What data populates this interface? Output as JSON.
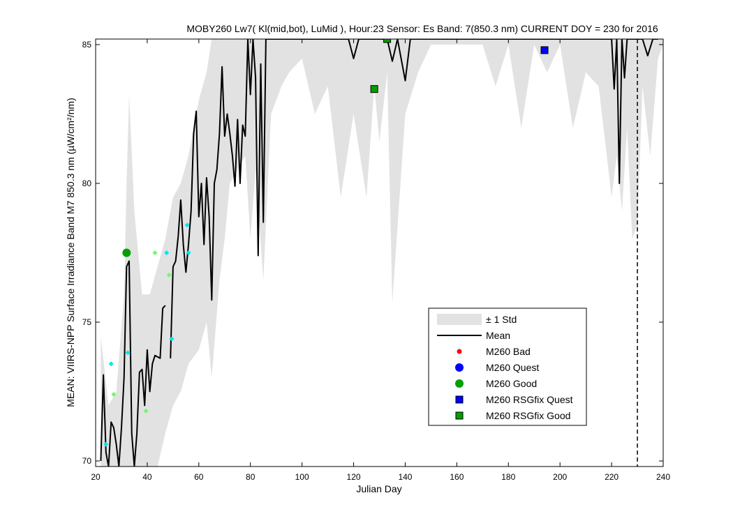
{
  "chart_data": {
    "type": "line",
    "title": "MOBY260   Lw7( Kl(mid,bot), LuMid ),   Hour:23 Sensor: Es Band: 7(850.3 nm)   CURRENT DOY = 230 for 2016",
    "xlabel": "Julian Day",
    "ylabel": "MEAN: VIIRS-NPP Surface Irradiance Band M7 850.3 nm (µW/cm²/nm)",
    "xlim": [
      20,
      240
    ],
    "ylim": [
      69.8,
      85.2
    ],
    "xticks": [
      20,
      40,
      60,
      80,
      100,
      120,
      140,
      160,
      180,
      200,
      220,
      240
    ],
    "yticks": [
      70,
      75,
      80,
      85
    ],
    "grid": false,
    "legend_position": "lower-right",
    "current_doy": 230,
    "colors": {
      "std_band": "#e2e2e2",
      "mean_line": "#000000",
      "bad": "#ff0000",
      "quest": "#0000ff",
      "good": "#00a000",
      "rsgfix_quest": "#0000ff",
      "rsgfix_good": "#00a000",
      "satellite_cyan": "#00e5ee",
      "satellite_green": "#6dfa6d"
    },
    "legend": [
      {
        "label": "± 1 Std",
        "kind": "band"
      },
      {
        "label": "Mean",
        "kind": "line"
      },
      {
        "label": "M260 Bad",
        "kind": "bad"
      },
      {
        "label": "M260 Quest",
        "kind": "quest"
      },
      {
        "label": "M260 Good",
        "kind": "good"
      },
      {
        "label": "M260 RSGfix Quest",
        "kind": "rsgfix_quest"
      },
      {
        "label": "M260 RSGfix Good",
        "kind": "rsgfix_good"
      }
    ],
    "series": [
      {
        "name": "Mean",
        "x": [
          22,
          23,
          24,
          25,
          26,
          27,
          28,
          29,
          30,
          31,
          32,
          33,
          34,
          35,
          36,
          37,
          38,
          39,
          40,
          41,
          42,
          43,
          45,
          46,
          47,
          48,
          49,
          50,
          51,
          52,
          53,
          54,
          55,
          56,
          57,
          58,
          59,
          60,
          61,
          62,
          63,
          64,
          65,
          66,
          67,
          68,
          69,
          70,
          71,
          72,
          73,
          74,
          75,
          76,
          77,
          78,
          79,
          80,
          81,
          82,
          83,
          84,
          85,
          86,
          88,
          90,
          95,
          100,
          105,
          110,
          118,
          120,
          122,
          125,
          128,
          130,
          133,
          135,
          137,
          140,
          142,
          145,
          150,
          160,
          170,
          180,
          190,
          200,
          210,
          220,
          221,
          222,
          223,
          224,
          225,
          226,
          228,
          230,
          232,
          234,
          236,
          238
        ],
        "y": [
          70,
          73.1,
          70.3,
          69.8,
          71.4,
          71.2,
          70.6,
          69.8,
          71.2,
          73,
          77,
          77.2,
          71,
          69.8,
          71,
          73.2,
          73.3,
          72,
          74,
          72.5,
          73.5,
          73.8,
          73.7,
          75.5,
          75.6,
          null,
          73.7,
          77,
          77.2,
          78.1,
          79.4,
          77.8,
          76.8,
          77.8,
          79,
          81.8,
          82.6,
          78.8,
          80,
          77.8,
          80.2,
          78.8,
          75.8,
          80,
          80.5,
          81.8,
          84.2,
          81.7,
          82.5,
          81.8,
          81,
          79.9,
          82.3,
          80,
          82.1,
          81.7,
          85.2,
          83.2,
          85.2,
          83.8,
          77.4,
          84.3,
          78.6,
          85.2,
          85.2,
          85.2,
          85.2,
          85.2,
          85.2,
          85.2,
          85.2,
          84.5,
          85.2,
          85.2,
          85.2,
          85.2,
          85.2,
          84.4,
          85.2,
          83.7,
          85.2,
          85.2,
          85.2,
          85.2,
          85.2,
          85.2,
          85.2,
          85.2,
          85.2,
          85.2,
          83.4,
          85.2,
          80,
          85.2,
          83.8,
          85.2,
          85.2,
          85.2,
          85.2,
          84.6,
          85.2,
          85.2
        ]
      },
      {
        "name": "± 1 Std",
        "x": [
          22,
          25,
          28,
          31,
          32,
          33,
          35,
          38,
          41,
          44,
          47,
          50,
          53,
          56,
          60,
          63,
          65,
          68,
          70,
          72,
          75,
          78,
          80,
          82,
          85,
          88,
          92,
          95,
          100,
          105,
          110,
          115,
          120,
          125,
          128,
          130,
          133,
          135,
          140,
          145,
          150,
          160,
          170,
          175,
          180,
          185,
          190,
          195,
          200,
          205,
          210,
          215,
          220,
          222,
          224,
          226,
          228,
          230,
          232,
          235,
          238,
          240
        ],
        "upper": [
          74.5,
          72,
          72.5,
          76,
          80,
          83.2,
          79,
          76,
          76,
          77,
          78,
          79.5,
          80,
          81,
          83,
          84,
          85.2,
          85.2,
          85.2,
          85.2,
          85.2,
          85.2,
          85.2,
          85.2,
          85.2,
          85.2,
          85.2,
          85.2,
          85.2,
          85.2,
          85.2,
          85.2,
          85.2,
          85.2,
          85.2,
          85.2,
          85.2,
          85.2,
          85.2,
          85.2,
          85.2,
          85.2,
          85.2,
          85.2,
          85.2,
          85.2,
          85.2,
          85.2,
          85.2,
          85.2,
          85.2,
          85.2,
          85.2,
          85.2,
          85.2,
          85.2,
          85.2,
          85.2,
          85.2,
          85.2,
          85.2,
          85.2
        ],
        "lower": [
          69.8,
          69.8,
          69.8,
          69.8,
          69.8,
          69.8,
          69.8,
          69.8,
          69.8,
          69.8,
          71,
          72,
          72.5,
          73.5,
          74,
          75,
          73,
          76.5,
          78,
          80,
          80.5,
          81,
          78,
          80.5,
          76.5,
          82.5,
          83.5,
          84,
          84.5,
          82.5,
          83.5,
          79.5,
          82.5,
          79.5,
          83.5,
          81.5,
          84,
          75.7,
          82.5,
          84,
          85,
          85,
          85,
          83.5,
          85,
          82,
          85,
          84,
          85,
          82,
          84,
          83.5,
          79.5,
          81,
          79,
          82,
          78,
          78.5,
          83.5,
          81,
          84.5,
          85
        ]
      },
      {
        "name": "satellite_cyan",
        "x": [
          24,
          26,
          32.5,
          47.5,
          49.5,
          55.5,
          56
        ],
        "y": [
          70.6,
          73.5,
          73.9,
          77.5,
          74.4,
          78.5,
          77.5
        ]
      },
      {
        "name": "satellite_green",
        "x": [
          27,
          39.5,
          43,
          48.5
        ],
        "y": [
          72.4,
          71.8,
          77.5,
          76.7
        ]
      },
      {
        "name": "M260 Good",
        "x": [
          32
        ],
        "y": [
          77.5
        ]
      },
      {
        "name": "M260 RSGfix Good",
        "x": [
          128,
          133
        ],
        "y": [
          83.4,
          85.2
        ]
      },
      {
        "name": "M260 RSGfix Quest",
        "x": [
          194
        ],
        "y": [
          84.8
        ]
      }
    ]
  }
}
